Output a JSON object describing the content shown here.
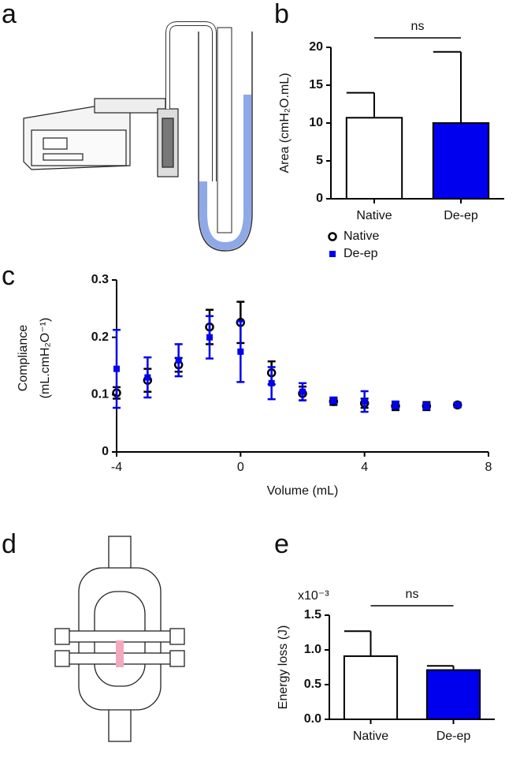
{
  "panel_labels": [
    "a",
    "b",
    "c",
    "d",
    "e"
  ],
  "chart_data": [
    {
      "type": "bar",
      "ylabel": "Area (cmH₂O.mL)",
      "categories": [
        "Native",
        "De-ep"
      ],
      "values": [
        10.7,
        10.0
      ],
      "errors": [
        3.3,
        9.4
      ],
      "colors": [
        "#ffffff",
        "#0000ee"
      ],
      "ylim": [
        0,
        20
      ],
      "yticks": [
        0,
        5,
        10,
        15,
        20
      ],
      "annotation": "ns"
    },
    {
      "type": "scatter",
      "xlabel": "Volume (mL)",
      "ylabel": [
        "Compliance",
        "(mL.cmH₂O⁻¹)"
      ],
      "x": [
        -4,
        -3,
        -2,
        -1,
        0,
        1,
        2,
        3,
        4,
        5,
        6,
        7
      ],
      "series": [
        {
          "name": "Native",
          "color": "#000000",
          "marker": "circle-open",
          "values": [
            0.103,
            0.125,
            0.152,
            0.218,
            0.226,
            0.138,
            0.102,
            0.088,
            0.085,
            0.08,
            0.08,
            0.082
          ],
          "errors": [
            0.01,
            0.02,
            0.012,
            0.03,
            0.036,
            0.02,
            0.012,
            0.006,
            0.008,
            0.007,
            0.007,
            0.004
          ]
        },
        {
          "name": "De-ep",
          "color": "#0000ee",
          "marker": "square",
          "values": [
            0.145,
            0.13,
            0.16,
            0.2,
            0.175,
            0.12,
            0.105,
            0.09,
            0.088,
            0.082,
            0.08,
            0.082
          ],
          "errors": [
            0.068,
            0.035,
            0.028,
            0.037,
            0.053,
            0.028,
            0.015,
            0.005,
            0.018,
            0.006,
            0.005,
            0.003
          ]
        }
      ],
      "xlim": [
        -4,
        8
      ],
      "xticks": [
        -4,
        0,
        4,
        8
      ],
      "ylim": [
        0,
        0.3
      ],
      "yticks": [
        0,
        0.1,
        0.2,
        0.3
      ]
    },
    {
      "type": "bar",
      "ylabel": "Energy loss (J)",
      "multiplier": "x10⁻³",
      "categories": [
        "Native",
        "De-ep"
      ],
      "values": [
        0.91,
        0.71
      ],
      "errors": [
        0.36,
        0.06
      ],
      "colors": [
        "#ffffff",
        "#0000ee"
      ],
      "ylim": [
        0,
        1.5
      ],
      "yticks": [
        {
          "value": 0,
          "label": "0.0"
        },
        {
          "value": 0.5,
          "label": "0.5"
        },
        {
          "value": 1.0,
          "label": "1.0"
        },
        {
          "value": 1.5,
          "label": "1.5"
        }
      ],
      "annotation": "ns"
    }
  ]
}
